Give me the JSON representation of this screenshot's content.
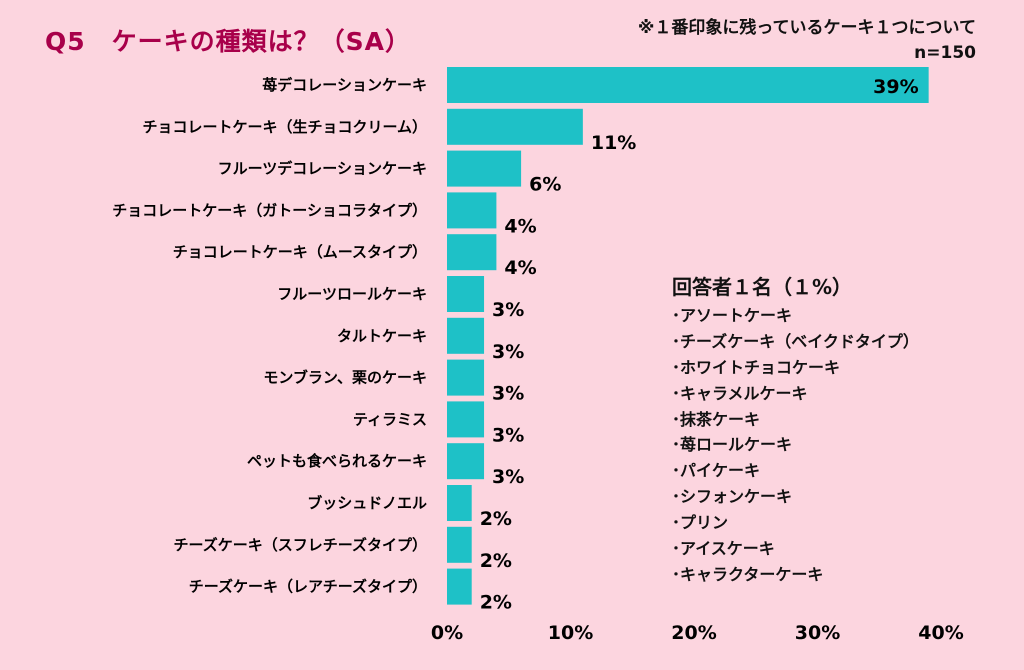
{
  "title": "Q5　ケーキの種類は？（SA）",
  "note": {
    "line1": "※１番印象に残っているケーキ１つについて",
    "line2": "n=150"
  },
  "colors": {
    "bar": "#1ec1c7",
    "background": "#fcd5df",
    "title": "#a8004a"
  },
  "chart_data": {
    "type": "bar",
    "orientation": "horizontal",
    "title": "Q5　ケーキの種類は？（SA）",
    "categories": [
      "苺デコレーションケーキ",
      "チョコレートケーキ（生チョコクリーム）",
      "フルーツデコレーションケーキ",
      "チョコレートケーキ（ガトーショコラタイプ）",
      "チョコレートケーキ（ムースタイプ）",
      "フルーツロールケーキ",
      "タルトケーキ",
      "モンブラン、栗のケーキ",
      "ティラミス",
      "ペットも食べられるケーキ",
      "ブッシュドノエル",
      "チーズケーキ（スフレチーズタイプ）",
      "チーズケーキ（レアチーズタイプ）"
    ],
    "values": [
      39,
      11,
      6,
      4,
      4,
      3,
      3,
      3,
      3,
      3,
      2,
      2,
      2
    ],
    "value_labels": [
      "39%",
      "11%",
      "6%",
      "4%",
      "4%",
      "3%",
      "3%",
      "3%",
      "3%",
      "3%",
      "2%",
      "2%",
      "2%"
    ],
    "xlim": [
      0,
      40
    ],
    "ticks": [
      0,
      10,
      20,
      30,
      40
    ],
    "tick_labels": [
      "0%",
      "10%",
      "20%",
      "30%",
      "40%"
    ],
    "xlabel": "",
    "ylabel": "",
    "grid": false
  },
  "legend": {
    "title": "回答者１名（１%）",
    "items": [
      "･アソートケーキ",
      "･チーズケーキ（ベイクドタイプ）",
      "･ホワイトチョコケーキ",
      "･キャラメルケーキ",
      "･抹茶ケーキ",
      "･苺ロールケーキ",
      "･パイケーキ",
      "･シフォンケーキ",
      "･プリン",
      "･アイスケーキ",
      "･キャラクターケーキ"
    ]
  }
}
